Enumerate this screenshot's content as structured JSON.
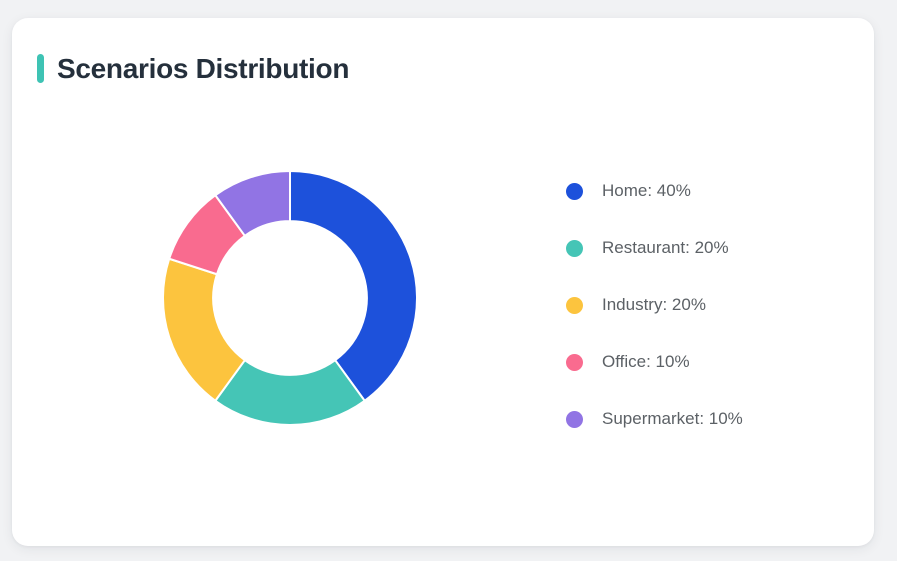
{
  "card": {
    "title": "Scenarios Distribution",
    "accent_color": "#3ec3b4"
  },
  "colors": {
    "page_background": "#f1f2f4",
    "card_background": "#ffffff",
    "title_text": "#25303c",
    "legend_text": "#5c6166",
    "slice_gap_stroke": "#ffffff"
  },
  "chart_data": {
    "type": "pie",
    "title": "Scenarios Distribution",
    "donut": true,
    "inner_radius_ratio": 0.605,
    "outer_radius_px": 127,
    "start_angle_deg": 0,
    "direction": "clockwise",
    "legend_position": "right",
    "unit": "%",
    "labels": [
      "Home",
      "Restaurant",
      "Industry",
      "Office",
      "Supermarket"
    ],
    "values": [
      40,
      20,
      20,
      10,
      10
    ],
    "colors": [
      "#1d51db",
      "#45c5b6",
      "#fcc43e",
      "#f96b8f",
      "#9174e4"
    ],
    "legend_labels": [
      "Home: 40%",
      "Restaurant: 20%",
      "Industry: 20%",
      "Office: 10%",
      "Supermarket: 10%"
    ]
  }
}
